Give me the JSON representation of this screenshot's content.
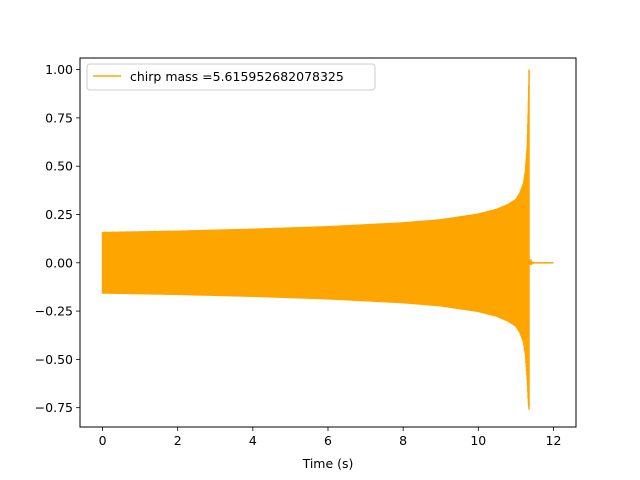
{
  "chart_data": {
    "type": "line",
    "title": "",
    "xlabel": "Time (s)",
    "ylabel": "",
    "xlim": [
      -0.6,
      12.6
    ],
    "ylim": [
      -0.85,
      1.06
    ],
    "xticks": [
      0,
      2,
      4,
      6,
      8,
      10,
      12
    ],
    "yticks": [
      -0.75,
      -0.5,
      -0.25,
      0.0,
      0.25,
      0.5,
      0.75,
      1.0
    ],
    "xtick_labels": [
      "0",
      "2",
      "4",
      "6",
      "8",
      "10",
      "12"
    ],
    "ytick_labels": [
      "−0.75",
      "−0.50",
      "−0.25",
      "0.00",
      "0.25",
      "0.50",
      "0.75",
      "1.00"
    ],
    "grid": false,
    "legend_position": "top-left",
    "series": [
      {
        "name": "chirp mass =5.615952682078325",
        "color": "#ffa500",
        "merger_time": 11.35,
        "end_time": 12.0,
        "envelope": {
          "t": [
            0,
            2,
            4,
            6,
            8,
            9,
            10,
            10.5,
            10.8,
            11.0,
            11.1,
            11.2,
            11.25,
            11.3,
            11.33,
            11.35
          ],
          "upper": [
            0.16,
            0.167,
            0.177,
            0.19,
            0.21,
            0.226,
            0.255,
            0.28,
            0.305,
            0.33,
            0.36,
            0.41,
            0.47,
            0.6,
            0.8,
            1.0
          ],
          "lower": [
            -0.16,
            -0.167,
            -0.177,
            -0.19,
            -0.21,
            -0.226,
            -0.255,
            -0.28,
            -0.305,
            -0.33,
            -0.36,
            -0.41,
            -0.47,
            -0.6,
            -0.72,
            -0.76
          ]
        }
      }
    ]
  }
}
